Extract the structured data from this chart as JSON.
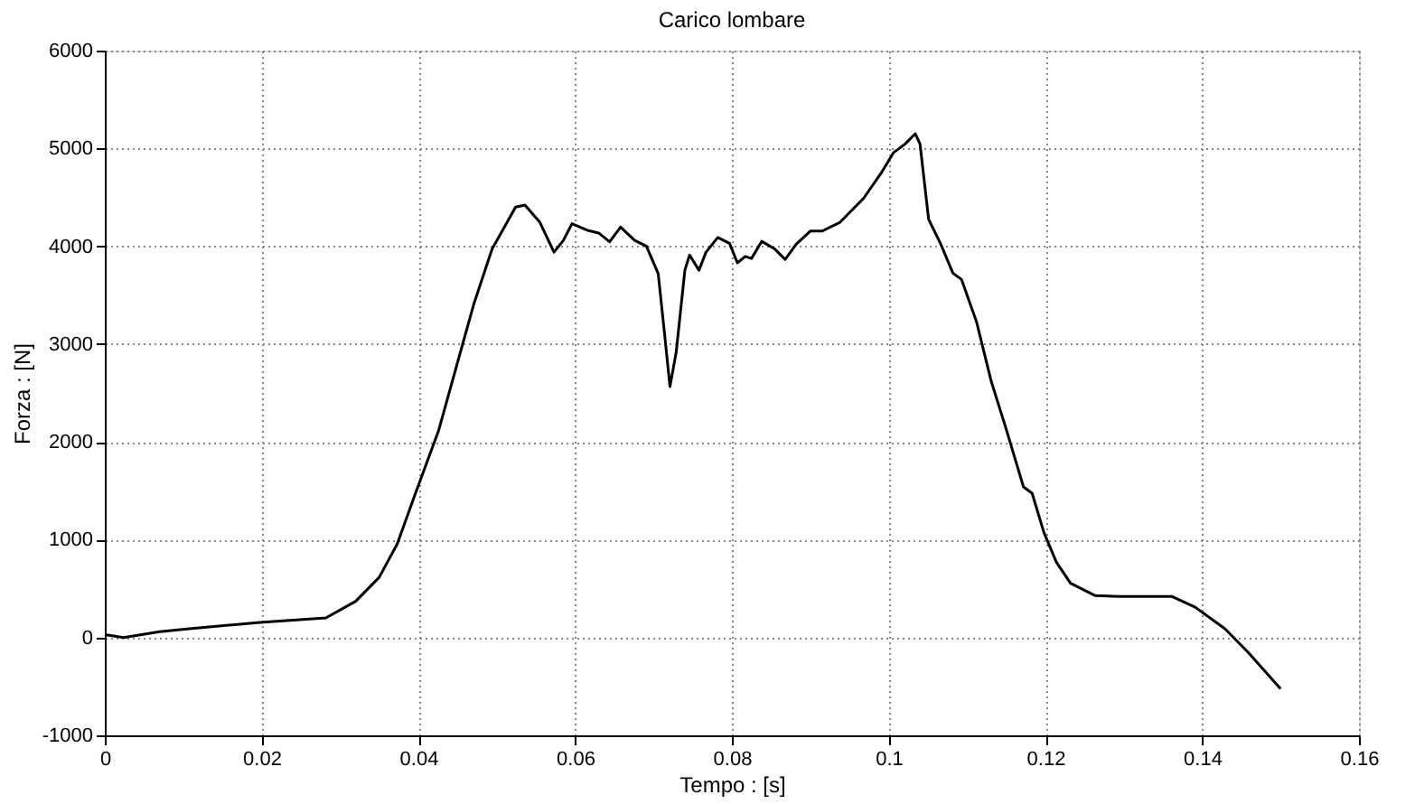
{
  "chart_data": {
    "type": "line",
    "title": "Carico lombare",
    "xlabel": "Tempo : [s]",
    "ylabel": "Forza : [N]",
    "x": [
      0,
      0.0024,
      0.007,
      0.0108,
      0.0198,
      0.0282,
      0.032,
      0.035,
      0.0373,
      0.0395,
      0.0426,
      0.0456,
      0.0471,
      0.0494,
      0.0524,
      0.0536,
      0.0555,
      0.0573,
      0.0585,
      0.0596,
      0.0615,
      0.063,
      0.0644,
      0.0658,
      0.0676,
      0.0691,
      0.0706,
      0.0714,
      0.0721,
      0.0729,
      0.074,
      0.0746,
      0.0758,
      0.0767,
      0.0782,
      0.0797,
      0.0807,
      0.0817,
      0.0825,
      0.0838,
      0.0855,
      0.0868,
      0.0882,
      0.09,
      0.0915,
      0.0938,
      0.0968,
      0.0991,
      0.1006,
      0.1021,
      0.1034,
      0.104,
      0.1051,
      0.1066,
      0.1082,
      0.1093,
      0.1112,
      0.1131,
      0.1149,
      0.1172,
      0.1183,
      0.1198,
      0.1214,
      0.1232,
      0.1263,
      0.1293,
      0.1331,
      0.1361,
      0.1391,
      0.1429,
      0.1459,
      0.15
    ],
    "series": [
      {
        "color": "#000000",
        "values": [
          30,
          0,
          60,
          90,
          155,
          200,
          370,
          615,
          955,
          1445,
          2120,
          2985,
          3415,
          3970,
          4400,
          4420,
          4245,
          3940,
          4060,
          4230,
          4165,
          4135,
          4045,
          4195,
          4060,
          4000,
          3720,
          3110,
          2565,
          2920,
          3755,
          3910,
          3755,
          3940,
          4090,
          4030,
          3830,
          3895,
          3875,
          4050,
          3970,
          3865,
          4020,
          4155,
          4155,
          4245,
          4490,
          4755,
          4955,
          5045,
          5150,
          5045,
          4275,
          4030,
          3725,
          3660,
          3230,
          2615,
          2155,
          1540,
          1475,
          1075,
          770,
          555,
          430,
          420,
          420,
          420,
          310,
          90,
          -155,
          -525
        ]
      }
    ],
    "xlim": [
      0,
      0.16
    ],
    "xticks": [
      0,
      0.02,
      0.04,
      0.06,
      0.08,
      0.1,
      0.12,
      0.14,
      0.16
    ],
    "ylim": [
      -1000,
      6000
    ],
    "yticks": [
      -1000,
      0,
      1000,
      2000,
      3000,
      4000,
      5000,
      6000
    ],
    "grid": true,
    "marker": "none",
    "line_style": "solid"
  }
}
